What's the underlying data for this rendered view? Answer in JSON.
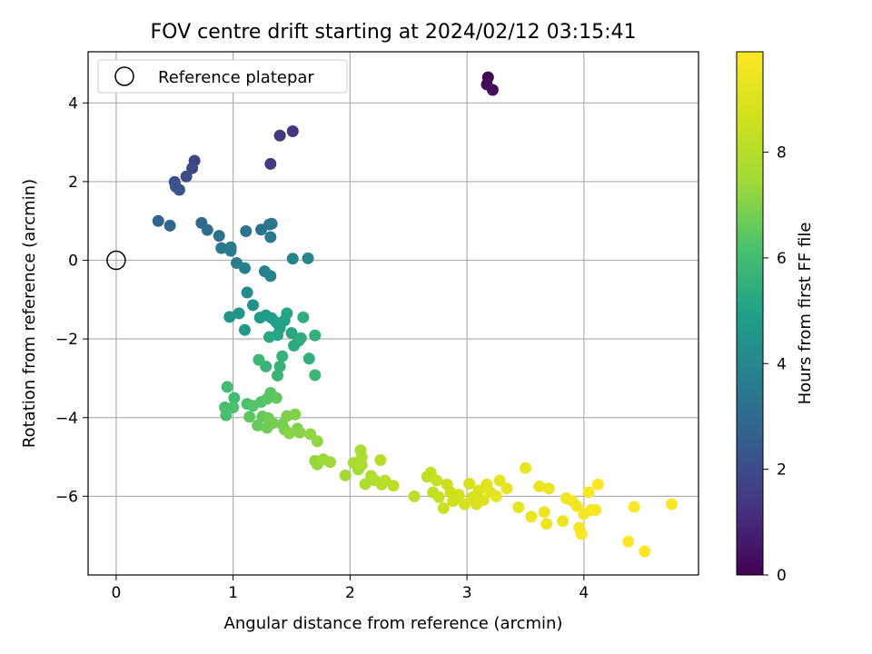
{
  "chart_data": {
    "type": "scatter",
    "title": "FOV centre drift starting at 2024/02/12 03:15:41",
    "xlabel": "Angular distance from reference (arcmin)",
    "ylabel": "Rotation from reference (arcmin)",
    "xlim": [
      -0.24,
      4.98
    ],
    "ylim": [
      -8.0,
      5.3
    ],
    "xticks": [
      "0",
      "1",
      "2",
      "3",
      "4"
    ],
    "yticks": [
      "4",
      "2",
      "0",
      "−2",
      "−4",
      "−6"
    ],
    "grid": true,
    "legend": {
      "position": "upper-left",
      "entries": [
        "Reference platepar"
      ]
    },
    "reference_point": {
      "x": 0,
      "y": 0
    },
    "colorbar": {
      "label": "Hours from first FF file",
      "colormap": "viridis",
      "range": [
        0,
        9.9
      ],
      "ticks": [
        "0",
        "2",
        "4",
        "6",
        "8"
      ]
    },
    "points": [
      {
        "x": 3.18,
        "y": 4.65,
        "h": 0.1
      },
      {
        "x": 3.17,
        "y": 4.47,
        "h": 0.2
      },
      {
        "x": 3.22,
        "y": 4.33,
        "h": 0.3
      },
      {
        "x": 1.51,
        "y": 3.28,
        "h": 1.3
      },
      {
        "x": 1.4,
        "y": 3.17,
        "h": 1.4
      },
      {
        "x": 1.32,
        "y": 2.45,
        "h": 1.5
      },
      {
        "x": 0.67,
        "y": 2.53,
        "h": 1.8
      },
      {
        "x": 0.65,
        "y": 2.34,
        "h": 1.9
      },
      {
        "x": 0.6,
        "y": 2.13,
        "h": 2.0
      },
      {
        "x": 0.5,
        "y": 1.99,
        "h": 2.1
      },
      {
        "x": 0.51,
        "y": 1.87,
        "h": 2.2
      },
      {
        "x": 0.54,
        "y": 1.79,
        "h": 2.3
      },
      {
        "x": 0.36,
        "y": 1.0,
        "h": 2.8
      },
      {
        "x": 0.46,
        "y": 0.88,
        "h": 2.9
      },
      {
        "x": 0.73,
        "y": 0.95,
        "h": 3.0
      },
      {
        "x": 0.78,
        "y": 0.77,
        "h": 3.1
      },
      {
        "x": 0.88,
        "y": 0.62,
        "h": 3.2
      },
      {
        "x": 1.11,
        "y": 0.74,
        "h": 3.3
      },
      {
        "x": 1.24,
        "y": 0.78,
        "h": 3.3
      },
      {
        "x": 1.31,
        "y": 0.91,
        "h": 3.4
      },
      {
        "x": 1.33,
        "y": 0.93,
        "h": 3.4
      },
      {
        "x": 1.32,
        "y": 0.59,
        "h": 3.5
      },
      {
        "x": 0.9,
        "y": 0.31,
        "h": 3.5
      },
      {
        "x": 0.98,
        "y": 0.33,
        "h": 3.6
      },
      {
        "x": 0.98,
        "y": 0.24,
        "h": 3.6
      },
      {
        "x": 1.03,
        "y": -0.07,
        "h": 3.7
      },
      {
        "x": 1.1,
        "y": -0.2,
        "h": 3.8
      },
      {
        "x": 1.27,
        "y": -0.28,
        "h": 3.8
      },
      {
        "x": 1.32,
        "y": -0.4,
        "h": 3.9
      },
      {
        "x": 1.51,
        "y": 0.04,
        "h": 3.9
      },
      {
        "x": 1.64,
        "y": 0.05,
        "h": 4.0
      },
      {
        "x": 1.12,
        "y": -0.82,
        "h": 4.2
      },
      {
        "x": 1.17,
        "y": -1.14,
        "h": 4.4
      },
      {
        "x": 0.97,
        "y": -1.44,
        "h": 4.5
      },
      {
        "x": 1.05,
        "y": -1.35,
        "h": 4.5
      },
      {
        "x": 1.1,
        "y": -1.77,
        "h": 4.6
      },
      {
        "x": 1.23,
        "y": -1.46,
        "h": 4.7
      },
      {
        "x": 1.28,
        "y": -1.4,
        "h": 4.8
      },
      {
        "x": 1.33,
        "y": -1.47,
        "h": 4.8
      },
      {
        "x": 1.37,
        "y": -1.58,
        "h": 4.9
      },
      {
        "x": 1.4,
        "y": -1.72,
        "h": 5.0
      },
      {
        "x": 1.44,
        "y": -1.53,
        "h": 5.0
      },
      {
        "x": 1.46,
        "y": -1.35,
        "h": 5.1
      },
      {
        "x": 1.38,
        "y": -1.9,
        "h": 5.1
      },
      {
        "x": 1.31,
        "y": -1.95,
        "h": 5.2
      },
      {
        "x": 1.5,
        "y": -1.85,
        "h": 5.2
      },
      {
        "x": 1.52,
        "y": -2.17,
        "h": 5.3
      },
      {
        "x": 1.56,
        "y": -2.05,
        "h": 5.3
      },
      {
        "x": 1.58,
        "y": -1.98,
        "h": 5.4
      },
      {
        "x": 1.6,
        "y": -1.45,
        "h": 5.4
      },
      {
        "x": 1.7,
        "y": -1.91,
        "h": 5.5
      },
      {
        "x": 1.65,
        "y": -2.5,
        "h": 5.5
      },
      {
        "x": 1.42,
        "y": -2.44,
        "h": 5.6
      },
      {
        "x": 1.4,
        "y": -2.7,
        "h": 5.6
      },
      {
        "x": 1.38,
        "y": -2.93,
        "h": 5.7
      },
      {
        "x": 1.28,
        "y": -2.7,
        "h": 5.7
      },
      {
        "x": 1.22,
        "y": -2.53,
        "h": 5.8
      },
      {
        "x": 1.7,
        "y": -2.92,
        "h": 5.8
      },
      {
        "x": 0.95,
        "y": -3.22,
        "h": 6.0
      },
      {
        "x": 1.01,
        "y": -3.5,
        "h": 6.0
      },
      {
        "x": 0.93,
        "y": -3.74,
        "h": 6.1
      },
      {
        "x": 0.94,
        "y": -3.94,
        "h": 6.1
      },
      {
        "x": 1.0,
        "y": -3.74,
        "h": 6.2
      },
      {
        "x": 1.12,
        "y": -3.65,
        "h": 6.2
      },
      {
        "x": 1.17,
        "y": -3.7,
        "h": 6.3
      },
      {
        "x": 1.24,
        "y": -3.6,
        "h": 6.3
      },
      {
        "x": 1.29,
        "y": -3.52,
        "h": 6.4
      },
      {
        "x": 1.32,
        "y": -3.37,
        "h": 6.4
      },
      {
        "x": 1.37,
        "y": -3.5,
        "h": 6.5
      },
      {
        "x": 1.14,
        "y": -3.98,
        "h": 6.5
      },
      {
        "x": 1.21,
        "y": -4.2,
        "h": 6.6
      },
      {
        "x": 1.25,
        "y": -3.97,
        "h": 6.6
      },
      {
        "x": 1.29,
        "y": -4.26,
        "h": 6.7
      },
      {
        "x": 1.3,
        "y": -4.01,
        "h": 6.7
      },
      {
        "x": 1.34,
        "y": -4.14,
        "h": 6.8
      },
      {
        "x": 1.42,
        "y": -4.17,
        "h": 6.8
      },
      {
        "x": 1.44,
        "y": -4.3,
        "h": 6.9
      },
      {
        "x": 1.46,
        "y": -3.96,
        "h": 6.9
      },
      {
        "x": 1.53,
        "y": -3.92,
        "h": 7.0
      },
      {
        "x": 1.55,
        "y": -4.28,
        "h": 7.0
      },
      {
        "x": 1.57,
        "y": -4.38,
        "h": 7.1
      },
      {
        "x": 1.48,
        "y": -4.4,
        "h": 7.1
      },
      {
        "x": 1.66,
        "y": -4.42,
        "h": 7.2
      },
      {
        "x": 1.72,
        "y": -4.6,
        "h": 7.2
      },
      {
        "x": 1.7,
        "y": -5.1,
        "h": 7.3
      },
      {
        "x": 1.72,
        "y": -5.19,
        "h": 7.3
      },
      {
        "x": 1.77,
        "y": -5.06,
        "h": 7.4
      },
      {
        "x": 1.83,
        "y": -5.13,
        "h": 7.4
      },
      {
        "x": 1.96,
        "y": -5.47,
        "h": 7.5
      },
      {
        "x": 2.03,
        "y": -5.15,
        "h": 7.6
      },
      {
        "x": 2.07,
        "y": -5.32,
        "h": 7.6
      },
      {
        "x": 2.09,
        "y": -4.83,
        "h": 7.7
      },
      {
        "x": 2.1,
        "y": -5.0,
        "h": 7.7
      },
      {
        "x": 2.1,
        "y": -5.2,
        "h": 7.8
      },
      {
        "x": 2.13,
        "y": -5.69,
        "h": 7.8
      },
      {
        "x": 2.18,
        "y": -5.48,
        "h": 7.9
      },
      {
        "x": 2.21,
        "y": -5.59,
        "h": 7.9
      },
      {
        "x": 2.26,
        "y": -5.08,
        "h": 8.0
      },
      {
        "x": 2.27,
        "y": -5.7,
        "h": 8.0
      },
      {
        "x": 2.3,
        "y": -5.6,
        "h": 8.1
      },
      {
        "x": 2.37,
        "y": -5.73,
        "h": 8.1
      },
      {
        "x": 2.55,
        "y": -6.0,
        "h": 8.2
      },
      {
        "x": 2.66,
        "y": -5.5,
        "h": 8.2
      },
      {
        "x": 2.69,
        "y": -5.4,
        "h": 8.3
      },
      {
        "x": 2.71,
        "y": -5.9,
        "h": 8.3
      },
      {
        "x": 2.74,
        "y": -5.6,
        "h": 8.4
      },
      {
        "x": 2.76,
        "y": -6.02,
        "h": 8.4
      },
      {
        "x": 2.8,
        "y": -6.3,
        "h": 8.5
      },
      {
        "x": 2.83,
        "y": -5.7,
        "h": 8.5
      },
      {
        "x": 2.86,
        "y": -5.9,
        "h": 8.6
      },
      {
        "x": 2.88,
        "y": -6.12,
        "h": 8.6
      },
      {
        "x": 2.9,
        "y": -6.05,
        "h": 8.7
      },
      {
        "x": 2.93,
        "y": -5.96,
        "h": 8.7
      },
      {
        "x": 2.98,
        "y": -6.2,
        "h": 8.8
      },
      {
        "x": 3.02,
        "y": -5.68,
        "h": 8.8
      },
      {
        "x": 3.05,
        "y": -6.02,
        "h": 8.9
      },
      {
        "x": 3.08,
        "y": -6.2,
        "h": 8.9
      },
      {
        "x": 3.1,
        "y": -5.85,
        "h": 9.0
      },
      {
        "x": 3.14,
        "y": -6.1,
        "h": 9.0
      },
      {
        "x": 3.17,
        "y": -5.7,
        "h": 9.1
      },
      {
        "x": 3.2,
        "y": -5.9,
        "h": 9.1
      },
      {
        "x": 3.25,
        "y": -6.0,
        "h": 9.2
      },
      {
        "x": 3.28,
        "y": -5.6,
        "h": 9.2
      },
      {
        "x": 3.34,
        "y": -5.8,
        "h": 9.3
      },
      {
        "x": 3.44,
        "y": -6.28,
        "h": 9.3
      },
      {
        "x": 3.5,
        "y": -5.28,
        "h": 9.3
      },
      {
        "x": 3.55,
        "y": -6.52,
        "h": 9.4
      },
      {
        "x": 3.62,
        "y": -5.75,
        "h": 9.4
      },
      {
        "x": 3.66,
        "y": -6.4,
        "h": 9.4
      },
      {
        "x": 3.68,
        "y": -6.7,
        "h": 9.5
      },
      {
        "x": 3.7,
        "y": -5.8,
        "h": 9.5
      },
      {
        "x": 3.82,
        "y": -6.63,
        "h": 9.5
      },
      {
        "x": 3.85,
        "y": -6.05,
        "h": 9.6
      },
      {
        "x": 3.9,
        "y": -6.12,
        "h": 9.6
      },
      {
        "x": 3.94,
        "y": -6.25,
        "h": 9.6
      },
      {
        "x": 3.96,
        "y": -6.8,
        "h": 9.7
      },
      {
        "x": 3.98,
        "y": -6.96,
        "h": 9.7
      },
      {
        "x": 4.0,
        "y": -6.45,
        "h": 9.7
      },
      {
        "x": 4.04,
        "y": -5.9,
        "h": 9.7
      },
      {
        "x": 4.06,
        "y": -6.35,
        "h": 9.8
      },
      {
        "x": 4.1,
        "y": -6.35,
        "h": 9.8
      },
      {
        "x": 4.12,
        "y": -5.7,
        "h": 9.8
      },
      {
        "x": 4.38,
        "y": -7.15,
        "h": 9.85
      },
      {
        "x": 4.43,
        "y": -6.27,
        "h": 9.85
      },
      {
        "x": 4.52,
        "y": -7.4,
        "h": 9.9
      },
      {
        "x": 4.75,
        "y": -6.2,
        "h": 9.9
      }
    ]
  }
}
